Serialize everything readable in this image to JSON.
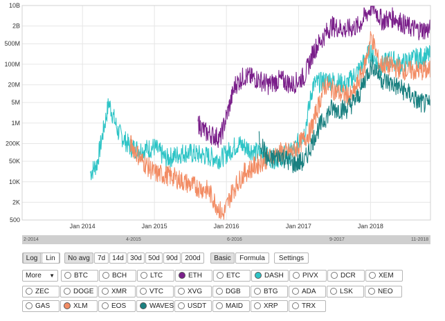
{
  "chart_data": {
    "type": "line",
    "y_scale": "log",
    "y_ticks": [
      "500",
      "2K",
      "10K",
      "50K",
      "200K",
      "1M",
      "5M",
      "20M",
      "100M",
      "500M",
      "2B",
      "10B"
    ],
    "y_tick_values": [
      500,
      2000,
      10000,
      50000,
      200000,
      1000000,
      5000000,
      20000000,
      100000000,
      500000000,
      2000000000,
      10000000000
    ],
    "x_ticks": [
      "Jan 2014",
      "Jan 2015",
      "Jan 2016",
      "Jan 2017",
      "Jan 2018"
    ],
    "x_range": [
      "2013-03-01",
      "2018-11-01"
    ],
    "ylim": [
      500,
      10000000000
    ],
    "grid": true,
    "series": [
      {
        "name": "DASH",
        "color": "#2ec4c6",
        "points": [
          [
            "2014-02-10",
            20000
          ],
          [
            "2014-03-15",
            40000
          ],
          [
            "2014-05-15",
            5000000
          ],
          [
            "2014-07-01",
            500000
          ],
          [
            "2014-09-01",
            150000
          ],
          [
            "2014-11-01",
            120000
          ],
          [
            "2015-01-01",
            150000
          ],
          [
            "2015-03-01",
            60000
          ],
          [
            "2015-06-01",
            100000
          ],
          [
            "2015-09-01",
            80000
          ],
          [
            "2015-12-01",
            60000
          ],
          [
            "2016-03-01",
            200000
          ],
          [
            "2016-06-01",
            100000
          ],
          [
            "2016-09-01",
            60000
          ],
          [
            "2016-12-01",
            100000
          ],
          [
            "2017-02-01",
            500000
          ],
          [
            "2017-03-15",
            20000000
          ],
          [
            "2017-06-01",
            30000000
          ],
          [
            "2017-09-01",
            20000000
          ],
          [
            "2017-11-15",
            80000000
          ],
          [
            "2018-01-01",
            300000000
          ],
          [
            "2018-02-15",
            80000000
          ],
          [
            "2018-04-15",
            150000000
          ],
          [
            "2018-06-01",
            100000000
          ],
          [
            "2018-08-01",
            150000000
          ],
          [
            "2018-10-31",
            200000000
          ]
        ]
      },
      {
        "name": "ETH",
        "color": "#7a1f8a",
        "points": [
          [
            "2015-08-10",
            1000000
          ],
          [
            "2015-09-15",
            500000
          ],
          [
            "2015-12-01",
            300000
          ],
          [
            "2016-02-15",
            20000000
          ],
          [
            "2016-04-01",
            40000000
          ],
          [
            "2016-06-15",
            30000000
          ],
          [
            "2016-08-01",
            20000000
          ],
          [
            "2016-10-01",
            30000000
          ],
          [
            "2016-12-01",
            20000000
          ],
          [
            "2017-02-01",
            40000000
          ],
          [
            "2017-03-20",
            300000000
          ],
          [
            "2017-06-15",
            2000000000
          ],
          [
            "2017-09-01",
            1500000000
          ],
          [
            "2017-11-01",
            2000000000
          ],
          [
            "2018-01-10",
            10000000000
          ],
          [
            "2018-03-01",
            3000000000
          ],
          [
            "2018-05-01",
            4000000000
          ],
          [
            "2018-07-01",
            2000000000
          ],
          [
            "2018-09-01",
            1500000000
          ],
          [
            "2018-10-31",
            1500000000
          ]
        ]
      },
      {
        "name": "XLM",
        "color": "#f28c64",
        "points": [
          [
            "2014-09-01",
            200000
          ],
          [
            "2014-11-01",
            50000
          ],
          [
            "2015-01-01",
            20000
          ],
          [
            "2015-04-01",
            15000
          ],
          [
            "2015-07-01",
            8000
          ],
          [
            "2015-10-01",
            5000
          ],
          [
            "2015-12-15",
            700
          ],
          [
            "2016-02-01",
            5000
          ],
          [
            "2016-04-01",
            20000
          ],
          [
            "2016-07-01",
            50000
          ],
          [
            "2016-10-01",
            100000
          ],
          [
            "2016-12-01",
            100000
          ],
          [
            "2017-03-01",
            500000
          ],
          [
            "2017-05-15",
            20000000
          ],
          [
            "2017-08-01",
            10000000
          ],
          [
            "2017-10-01",
            8000000
          ],
          [
            "2017-12-01",
            80000000
          ],
          [
            "2018-01-05",
            900000000
          ],
          [
            "2018-02-15",
            100000000
          ],
          [
            "2018-05-01",
            80000000
          ],
          [
            "2018-07-01",
            60000000
          ],
          [
            "2018-10-31",
            60000000
          ]
        ]
      },
      {
        "name": "WAVES",
        "color": "#1a8080",
        "points": [
          [
            "2016-06-15",
            300000
          ],
          [
            "2016-08-01",
            50000
          ],
          [
            "2016-10-01",
            80000
          ],
          [
            "2016-12-01",
            40000
          ],
          [
            "2017-02-01",
            50000
          ],
          [
            "2017-04-01",
            500000
          ],
          [
            "2017-06-15",
            3000000
          ],
          [
            "2017-09-01",
            3000000
          ],
          [
            "2017-11-01",
            8000000
          ],
          [
            "2017-12-15",
            50000000
          ],
          [
            "2018-01-10",
            100000000
          ],
          [
            "2018-03-01",
            30000000
          ],
          [
            "2018-05-01",
            20000000
          ],
          [
            "2018-07-15",
            10000000
          ],
          [
            "2018-09-01",
            5000000
          ],
          [
            "2018-10-31",
            4000000
          ]
        ]
      }
    ]
  },
  "range_labels": [
    "2-2014",
    "4-2015",
    "6-2016",
    "9-2017",
    "11-2018"
  ],
  "controls": {
    "scale": {
      "log": "Log",
      "lin": "Lin"
    },
    "avg": {
      "none": "No avg",
      "d7": "7d",
      "d14": "14d",
      "d30": "30d",
      "d50": "50d",
      "d90": "90d",
      "d200": "200d"
    },
    "mode": {
      "basic": "Basic",
      "formula": "Formula"
    },
    "settings": "Settings",
    "more": "More"
  },
  "coins_row1": [
    {
      "label": "BTC",
      "checked": false,
      "color": ""
    },
    {
      "label": "BCH",
      "checked": false,
      "color": ""
    },
    {
      "label": "LTC",
      "checked": false,
      "color": ""
    },
    {
      "label": "ETH",
      "checked": true,
      "color": "#7a1f8a"
    },
    {
      "label": "ETC",
      "checked": false,
      "color": ""
    },
    {
      "label": "DASH",
      "checked": true,
      "color": "#2ec4c6"
    },
    {
      "label": "PIVX",
      "checked": false,
      "color": ""
    },
    {
      "label": "DCR",
      "checked": false,
      "color": ""
    },
    {
      "label": "XEM",
      "checked": false,
      "color": ""
    }
  ],
  "coins_row2": [
    {
      "label": "ZEC",
      "checked": false,
      "color": ""
    },
    {
      "label": "DOGE",
      "checked": false,
      "color": ""
    },
    {
      "label": "XMR",
      "checked": false,
      "color": ""
    },
    {
      "label": "VTC",
      "checked": false,
      "color": ""
    },
    {
      "label": "XVG",
      "checked": false,
      "color": ""
    },
    {
      "label": "DGB",
      "checked": false,
      "color": ""
    },
    {
      "label": "BTG",
      "checked": false,
      "color": ""
    },
    {
      "label": "ADA",
      "checked": false,
      "color": ""
    },
    {
      "label": "LSK",
      "checked": false,
      "color": ""
    },
    {
      "label": "NEO",
      "checked": false,
      "color": ""
    }
  ],
  "coins_row3": [
    {
      "label": "GAS",
      "checked": false,
      "color": ""
    },
    {
      "label": "XLM",
      "checked": true,
      "color": "#f28c64"
    },
    {
      "label": "EOS",
      "checked": false,
      "color": ""
    },
    {
      "label": "WAVES",
      "checked": true,
      "color": "#1a8080"
    },
    {
      "label": "USDT",
      "checked": false,
      "color": ""
    },
    {
      "label": "MAID",
      "checked": false,
      "color": ""
    },
    {
      "label": "XRP",
      "checked": false,
      "color": ""
    },
    {
      "label": "TRX",
      "checked": false,
      "color": ""
    }
  ]
}
